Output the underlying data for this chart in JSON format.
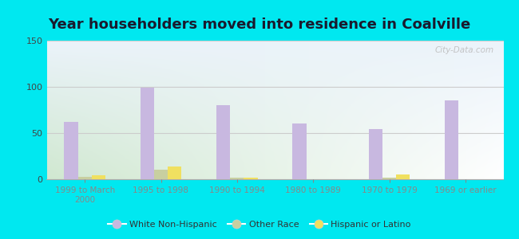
{
  "title": "Year householders moved into residence in Coalville",
  "categories": [
    "1999 to March\n2000",
    "1995 to 1998",
    "1990 to 1994",
    "1980 to 1989",
    "1970 to 1979",
    "1969 or earlier"
  ],
  "white_non_hispanic": [
    62,
    99,
    80,
    60,
    54,
    85
  ],
  "other_race": [
    3,
    10,
    2,
    0,
    2,
    0
  ],
  "hispanic_or_latino": [
    4,
    14,
    2,
    0,
    5,
    0
  ],
  "bar_width": 0.18,
  "white_color": "#c8b8e0",
  "other_color": "#c8cfa0",
  "hispanic_color": "#f0e060",
  "ylim": [
    0,
    150
  ],
  "yticks": [
    0,
    50,
    100,
    150
  ],
  "background_outer": "#00e8f0",
  "grid_color": "#e0e0e0",
  "title_fontsize": 13,
  "watermark": "City-Data.com"
}
